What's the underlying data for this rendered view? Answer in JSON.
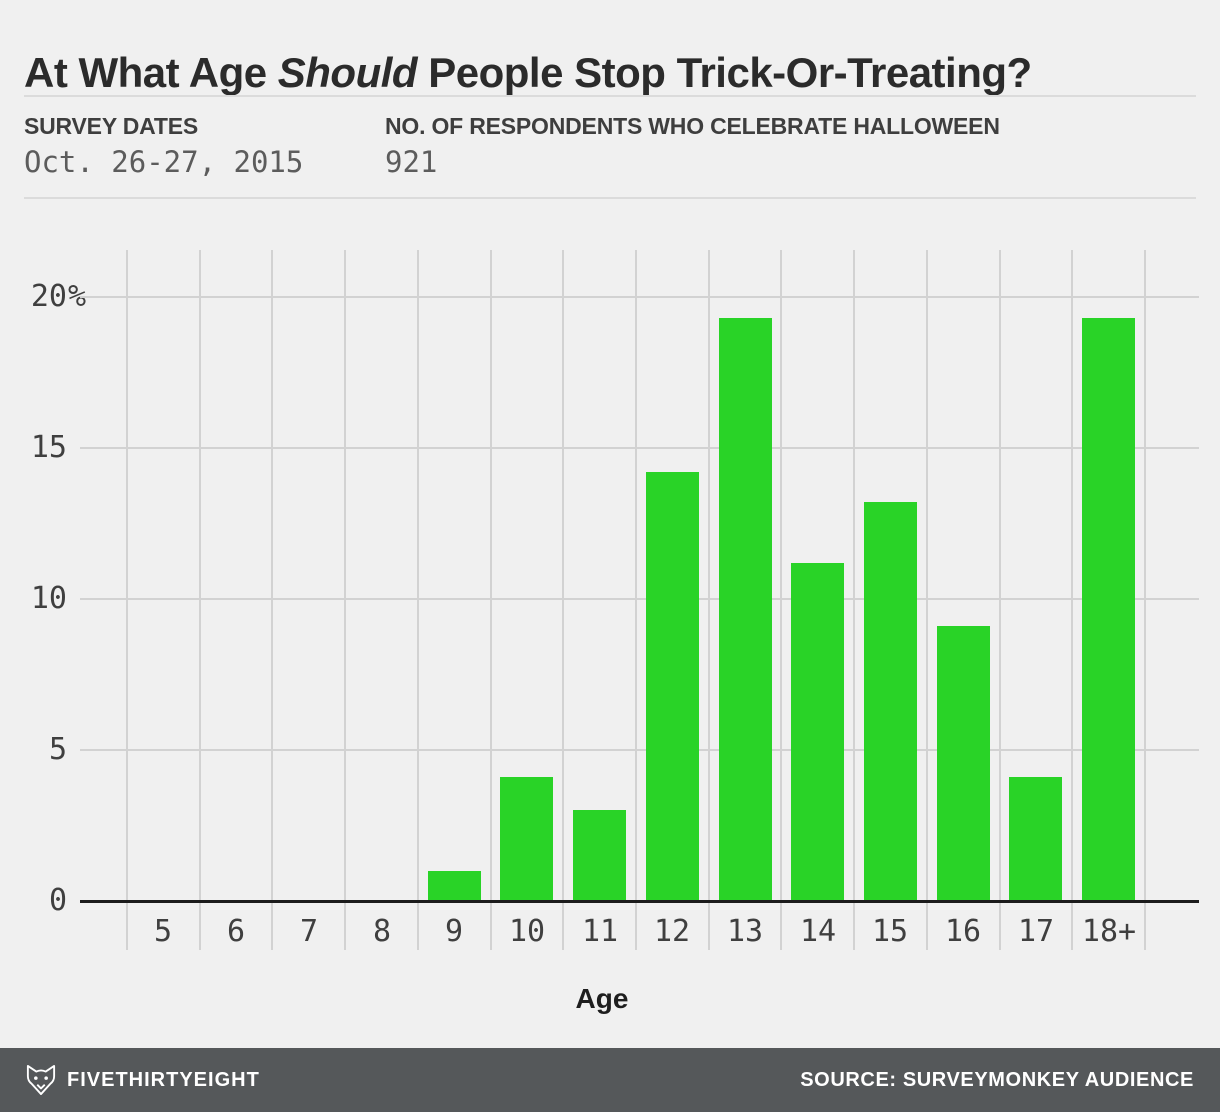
{
  "header": {
    "title": {
      "prefix": "At What Age ",
      "italic": "Should",
      "suffix": " People Stop Trick-Or-Treating?"
    },
    "meta": [
      {
        "label": "SURVEY DATES",
        "value": "Oct. 26-27, 2015"
      },
      {
        "label": "NO. OF RESPONDENTS WHO CELEBRATE HALLOWEEN",
        "value": "921"
      }
    ]
  },
  "chart_data": {
    "type": "bar",
    "title": "At What Age Should People Stop Trick-Or-Treating?",
    "categories": [
      "5",
      "6",
      "7",
      "8",
      "9",
      "10",
      "11",
      "12",
      "13",
      "14",
      "15",
      "16",
      "17",
      "18+"
    ],
    "values": [
      0,
      0,
      0,
      0,
      1.0,
      4.1,
      3.0,
      14.2,
      19.3,
      11.2,
      13.2,
      9.1,
      4.1,
      19.3
    ],
    "xlabel": "Age",
    "ylabel": "",
    "ylim": [
      0,
      21.6
    ],
    "yticks": [
      {
        "v": 0,
        "label": "0"
      },
      {
        "v": 5,
        "label": "5"
      },
      {
        "v": 10,
        "label": "10"
      },
      {
        "v": 15,
        "label": "15"
      },
      {
        "v": 20,
        "label": "20%"
      }
    ],
    "grid": true,
    "legend": "none",
    "bar_color": "#29d327"
  },
  "footer": {
    "brand": "FIVETHIRTYEIGHT",
    "logo_icon": "fivethirtyeight-fox-logo",
    "source": "SOURCE: SURVEYMONKEY AUDIENCE"
  },
  "colors": {
    "background": "#f0f0f0",
    "bar_green": "#29d327",
    "gridline": "#d2d2d2",
    "axis_line": "#1c1c1c",
    "title_text": "#2b2b2b",
    "tick_text": "#3f3f3f",
    "footer_background": "#55585a",
    "footer_text": "#ffffff"
  }
}
